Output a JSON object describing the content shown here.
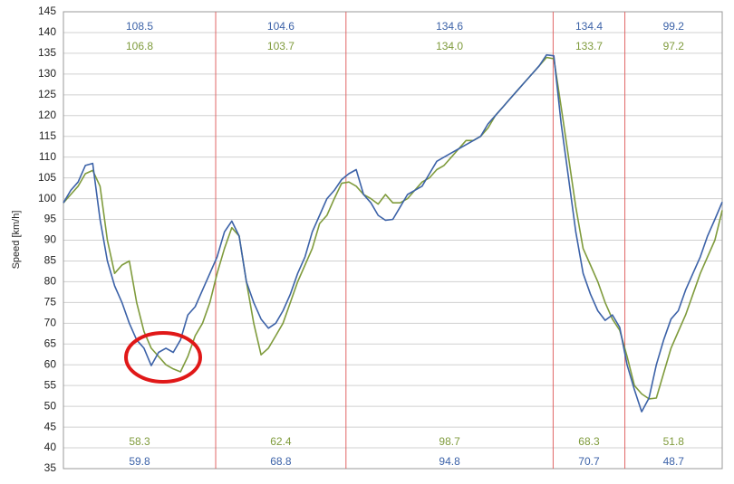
{
  "chart_data": {
    "type": "line",
    "y_label": "Speed [km/h]",
    "ylim": [
      35,
      145
    ],
    "yticks": [
      35,
      40,
      45,
      50,
      55,
      60,
      65,
      70,
      75,
      80,
      85,
      90,
      95,
      100,
      105,
      110,
      115,
      120,
      125,
      130,
      135,
      140,
      145
    ],
    "grid": true,
    "divider_color": "#e06666",
    "sector_bounds": [
      20.8,
      38.6,
      66.9,
      76.7
    ],
    "series": [
      {
        "color": "#3c62a8",
        "values": [
          99,
          102,
          104,
          108,
          108.5,
          95,
          85,
          79,
          75,
          70,
          66,
          64,
          59.8,
          63,
          64,
          63,
          66,
          72,
          74,
          78,
          82,
          86,
          92,
          94.6,
          91,
          80,
          75,
          71,
          68.8,
          70,
          73,
          77,
          82,
          86,
          92,
          96,
          100,
          102,
          104.6,
          106,
          107,
          101,
          99,
          96,
          94.8,
          95,
          98,
          101,
          102,
          103,
          106,
          109,
          110,
          111,
          112,
          113,
          114,
          115,
          118,
          120,
          122,
          124,
          126,
          128,
          130,
          132,
          134.6,
          134.4,
          118,
          105,
          92,
          82,
          77,
          73,
          70.7,
          72,
          69,
          60,
          54,
          48.7,
          52,
          60,
          66,
          71,
          73,
          78,
          82,
          86,
          91,
          95,
          99.2
        ],
        "sector_max": [
          108.5,
          104.6,
          134.6,
          134.4,
          99.2
        ],
        "sector_max_labels": [
          "108.5",
          "104.6",
          "134.6",
          "134.4",
          "99.2"
        ],
        "sector_min": [
          59.8,
          68.8,
          94.8,
          70.7,
          48.7
        ],
        "sector_min_labels": [
          "59.8",
          "68.8",
          "94.8",
          "70.7",
          "48.7"
        ]
      },
      {
        "color": "#7f9b3c",
        "values": [
          99,
          101,
          103,
          106,
          106.8,
          103,
          90,
          82,
          84,
          85,
          75,
          68,
          64,
          62,
          60,
          59,
          58.3,
          62,
          67,
          70,
          75,
          82,
          88,
          93,
          91,
          80,
          70,
          62.4,
          64,
          67,
          70,
          75,
          80,
          84,
          88,
          94,
          96,
          100,
          103.7,
          104,
          103,
          101,
          100,
          98.7,
          101,
          99,
          99,
          100,
          102,
          104,
          105,
          107,
          108,
          110,
          112,
          114,
          114,
          115,
          117,
          120,
          122,
          124,
          126,
          128,
          130,
          132,
          134.0,
          133.7,
          122,
          110,
          98,
          88,
          84,
          80,
          75,
          71,
          68.3,
          62,
          55,
          53,
          51.8,
          52,
          58,
          64,
          68,
          72,
          77,
          82,
          86,
          90,
          97.2
        ],
        "sector_max": [
          106.8,
          103.7,
          134.0,
          133.7,
          97.2
        ],
        "sector_max_labels": [
          "106.8",
          "103.7",
          "134.0",
          "133.7",
          "97.2"
        ],
        "sector_min": [
          58.3,
          62.4,
          98.7,
          68.3,
          51.8
        ],
        "sector_min_labels": [
          "58.3",
          "62.4",
          "98.7",
          "68.3",
          "51.8"
        ]
      }
    ]
  }
}
